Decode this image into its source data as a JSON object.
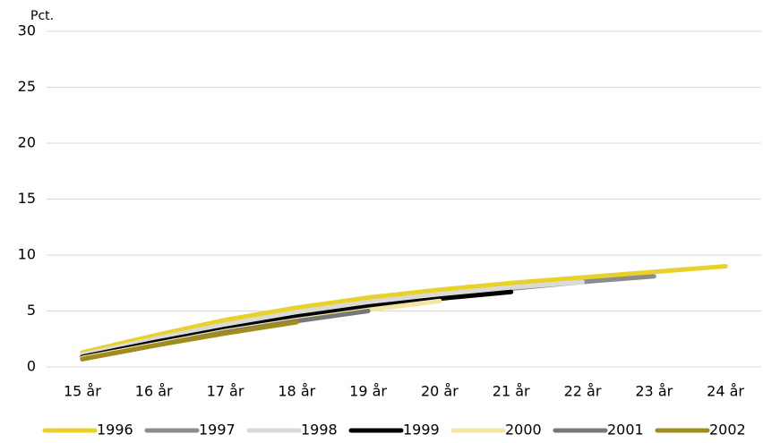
{
  "chart_data": {
    "type": "line",
    "y_label": "Pct.",
    "categories": [
      "15 år",
      "16 år",
      "17 år",
      "18 år",
      "19 år",
      "20 år",
      "21 år",
      "22 år",
      "23 år",
      "24 år"
    ],
    "series": [
      {
        "name": "1996",
        "color": "#e8d22a",
        "values": [
          1.3,
          2.8,
          4.2,
          5.3,
          6.2,
          6.9,
          7.5,
          8.0,
          8.5,
          9.0
        ]
      },
      {
        "name": "1997",
        "color": "#8c8c8c",
        "values": [
          0.9,
          2.3,
          3.6,
          4.8,
          5.7,
          6.4,
          7.0,
          7.6,
          8.1,
          null
        ]
      },
      {
        "name": "1998",
        "color": "#d9d9d9",
        "values": [
          1.1,
          2.5,
          3.8,
          4.9,
          5.8,
          6.5,
          7.1,
          7.6,
          null,
          null
        ]
      },
      {
        "name": "1999",
        "color": "#000000",
        "values": [
          0.9,
          2.2,
          3.4,
          4.5,
          5.4,
          6.1,
          6.7,
          null,
          null,
          null
        ]
      },
      {
        "name": "2000",
        "color": "#f2e6a0",
        "values": [
          0.8,
          2.0,
          3.2,
          4.2,
          5.1,
          5.9,
          null,
          null,
          null,
          null
        ]
      },
      {
        "name": "2001",
        "color": "#777777",
        "values": [
          0.7,
          1.9,
          3.1,
          4.1,
          5.0,
          null,
          null,
          null,
          null,
          null
        ]
      },
      {
        "name": "2002",
        "color": "#a08c1e",
        "values": [
          0.7,
          1.9,
          3.0,
          4.0,
          null,
          null,
          null,
          null,
          null,
          null
        ]
      }
    ],
    "ylim": [
      0,
      30
    ],
    "yticks": [
      0,
      5,
      10,
      15,
      20,
      25,
      30
    ],
    "grid": true,
    "legend": "bottom"
  }
}
